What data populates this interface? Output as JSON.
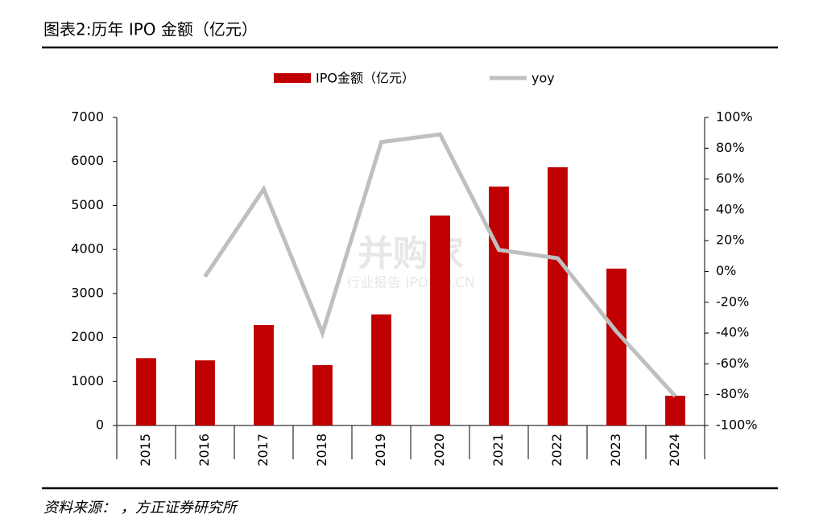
{
  "header": {
    "title": "图表2:历年 IPO 金额（亿元）"
  },
  "footer": {
    "source": "资料来源：       ，方正证券研究所"
  },
  "watermark": [
    "并购家",
    "行业报告 IPOIPO.CN"
  ],
  "chart_data": {
    "type": "bar",
    "categories": [
      "2015",
      "2016",
      "2017",
      "2018",
      "2019",
      "2020",
      "2021",
      "2022",
      "2023",
      "2024"
    ],
    "series": [
      {
        "name": "IPO金额（亿元）",
        "type": "bar",
        "color": "#c00000",
        "values": [
          1530,
          1480,
          2285,
          1371,
          2523,
          4771,
          5430,
          5868,
          3565,
          676
        ]
      },
      {
        "name": "yoy",
        "type": "line",
        "color": "#bfbfbf",
        "axis": "y2",
        "values": [
          null,
          -3.4,
          53.5,
          -40,
          84,
          89,
          14,
          8.6,
          -39,
          -81
        ]
      }
    ],
    "ylim": [
      0,
      7000
    ],
    "yticks": [
      0,
      1000,
      2000,
      3000,
      4000,
      5000,
      6000,
      7000
    ],
    "y2lim": [
      -100,
      100
    ],
    "y2ticks": [
      {
        "value": -100,
        "label": "-100%"
      },
      {
        "value": -80,
        "label": "-80%"
      },
      {
        "value": -60,
        "label": "-60%"
      },
      {
        "value": -40,
        "label": "-40%"
      },
      {
        "value": -20,
        "label": "-20%"
      },
      {
        "value": 0,
        "label": "0%"
      },
      {
        "value": 20,
        "label": "20%"
      },
      {
        "value": 40,
        "label": "40%"
      },
      {
        "value": 60,
        "label": "60%"
      },
      {
        "value": 80,
        "label": "80%"
      },
      {
        "value": 100,
        "label": "100%"
      }
    ],
    "legend": "top"
  }
}
